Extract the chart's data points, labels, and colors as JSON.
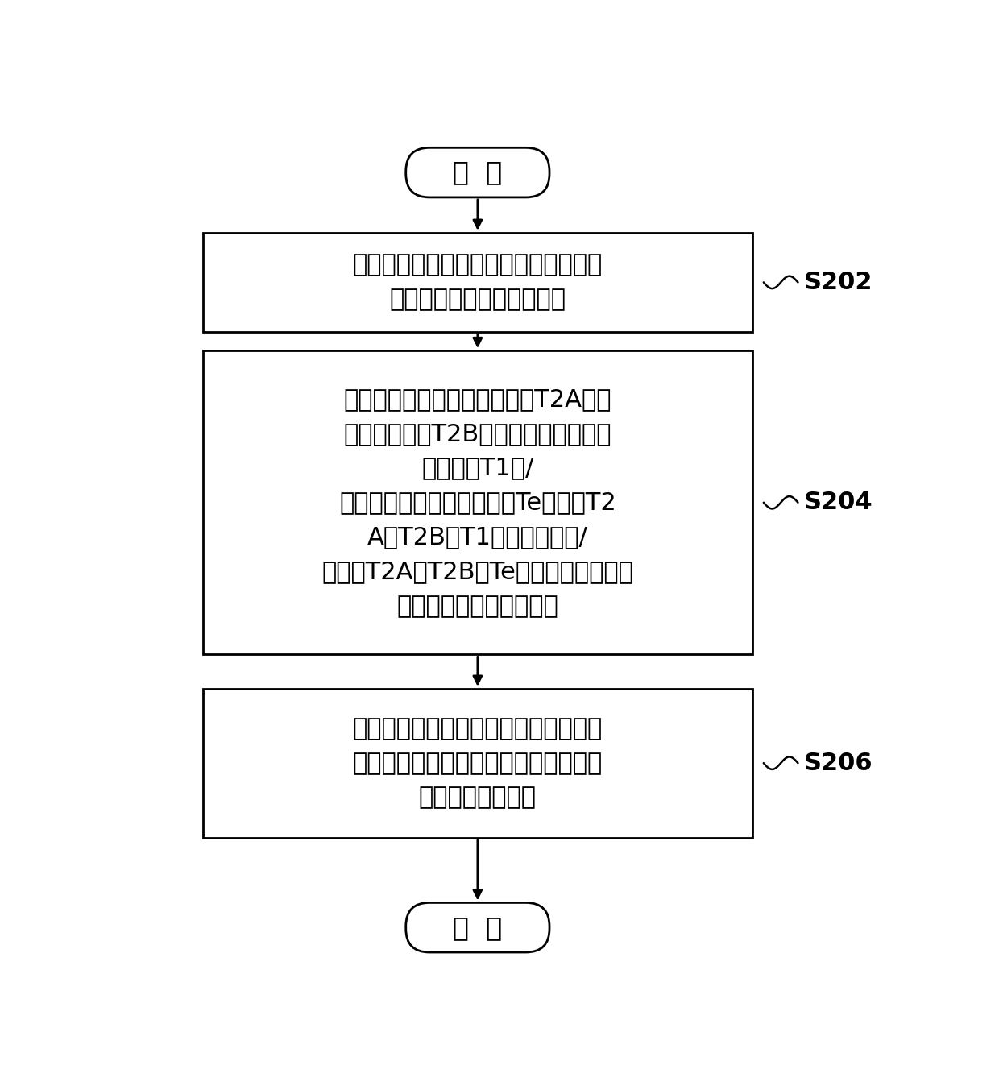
{
  "bg_color": "#ffffff",
  "line_color": "#000000",
  "text_color": "#000000",
  "fig_width": 12.4,
  "fig_height": 13.48,
  "start_label": "开  始",
  "end_label": "结  束",
  "step_labels": [
    "当接收到室内机的膨胀阀关闭指令后，\n控制膨胀阀运行至关闭状态",
    "获取室内机的换热器入口温度T2A及换\n热器出口温度T2B，获取室内机所处的\n室内温度T1和/\n或空调系统的冷媒蒸发温度Te，根据T2\nA、T2B、T1三者的关系和/\n或根据T2A、T2B、Te三者的关系，判断\n换热器是否处于运行状态",
    "当换热器处于运行状态时，判定膨胀阀\n的关闭状态失效，膨胀阀在关闭状态时\n具有不为零的开度"
  ],
  "step_ids": [
    "S202",
    "S204",
    "S206"
  ],
  "font_size_steps": 22,
  "font_size_terminal": 24,
  "font_size_ids": 22
}
